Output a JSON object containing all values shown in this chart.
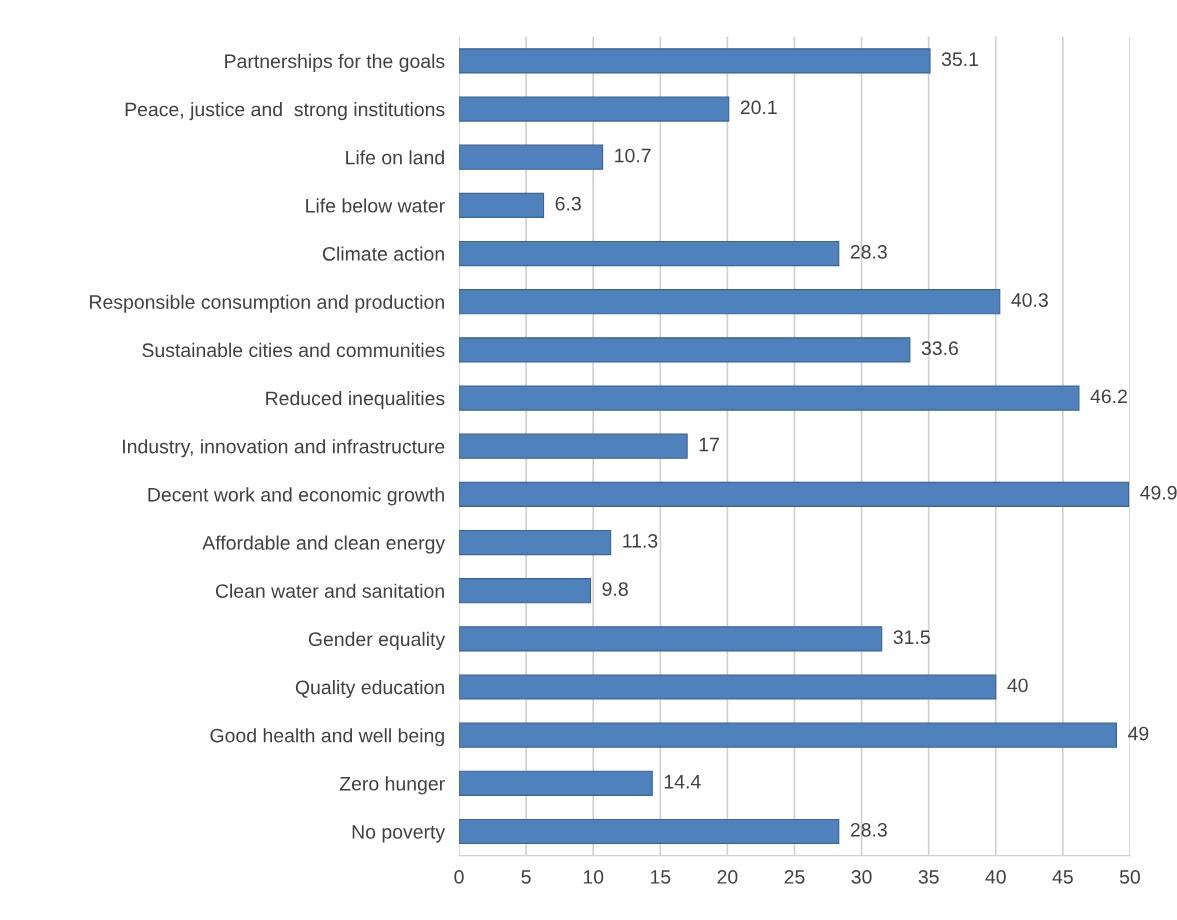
{
  "chart_data": {
    "type": "bar",
    "orientation": "horizontal",
    "categories": [
      "Partnerships for the goals",
      "Peace, justice and  strong institutions",
      "Life on land",
      "Life below water",
      "Climate action",
      "Responsible consumption and production",
      "Sustainable cities and communities",
      "Reduced inequalities",
      "Industry, innovation and infrastructure",
      "Decent work and economic growth",
      "Affordable and clean energy",
      "Clean water and sanitation",
      "Gender equality",
      "Quality education",
      "Good health and well being",
      "Zero hunger",
      "No poverty"
    ],
    "values": [
      35.1,
      20.1,
      10.7,
      6.3,
      28.3,
      40.3,
      33.6,
      46.2,
      17,
      49.9,
      11.3,
      9.8,
      31.5,
      40,
      49,
      14.4,
      28.3
    ],
    "color": "#4f81bd",
    "xlim": [
      0,
      50
    ],
    "xticks": [
      0,
      5,
      10,
      15,
      20,
      25,
      30,
      35,
      40,
      45,
      50
    ],
    "grid": "x",
    "data_labels": true
  }
}
